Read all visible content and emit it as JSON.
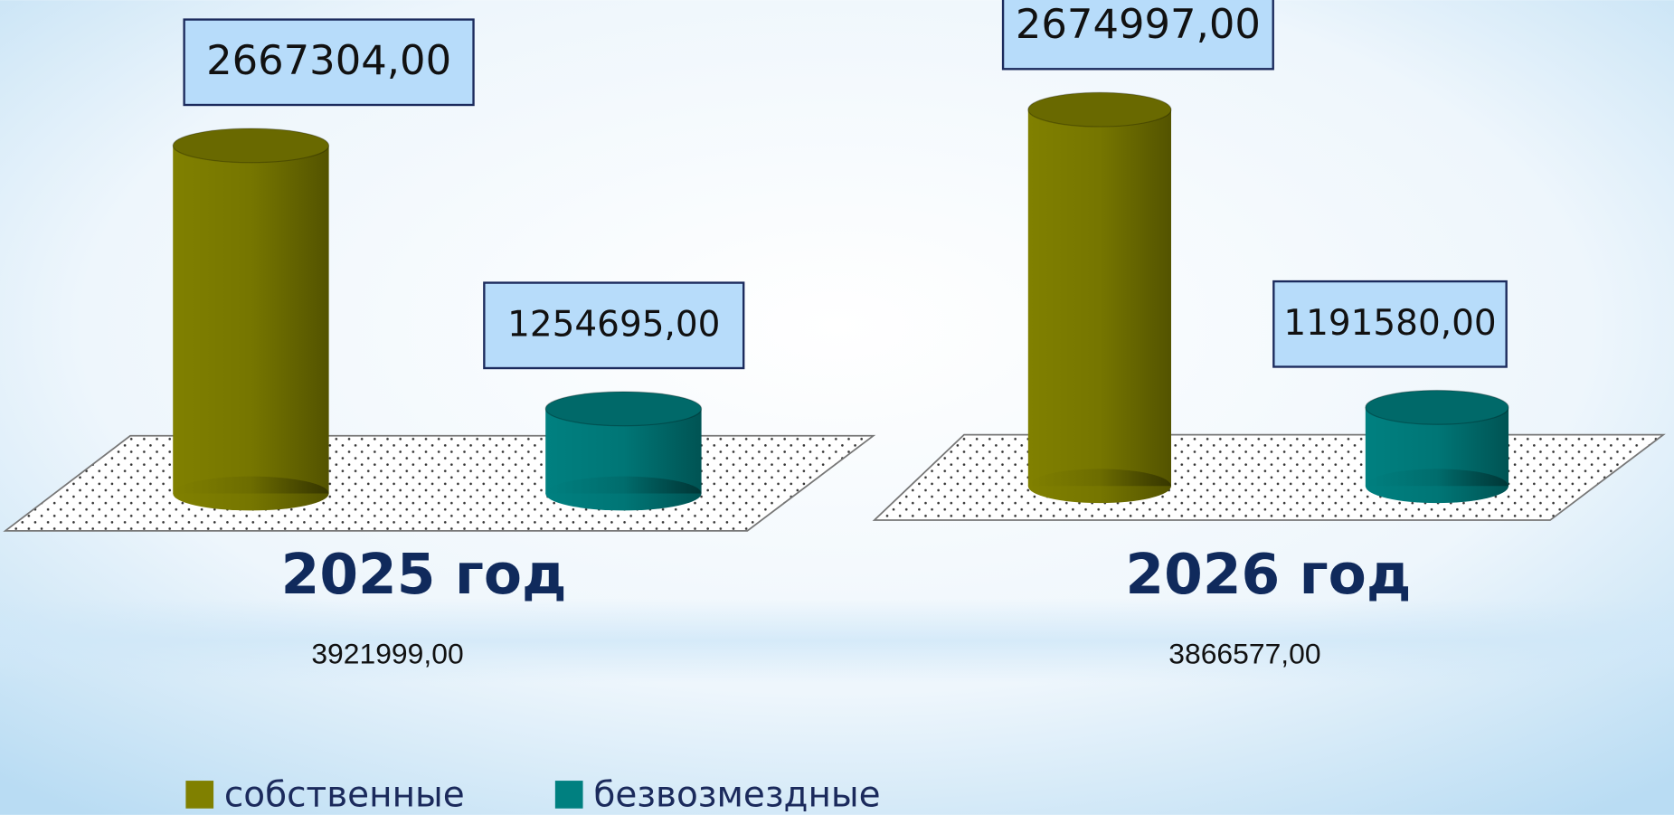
{
  "chart_data": [
    {
      "type": "bar",
      "title": "2025 год",
      "annotation": "3921999,00",
      "series": [
        {
          "name": "собственные",
          "color": "#808000",
          "values": [
            2667304
          ],
          "value_labels": [
            "2667304,00"
          ]
        },
        {
          "name": "безвозмездные",
          "color": "#008080",
          "values": [
            1254695
          ],
          "value_labels": [
            "1254695,00"
          ]
        }
      ],
      "ylim": [
        800000,
        2800000
      ]
    },
    {
      "type": "bar",
      "title": "2026 год",
      "annotation": "3866577,00",
      "series": [
        {
          "name": "собственные",
          "color": "#808000",
          "values": [
            2674997
          ],
          "value_labels": [
            "2674997,00"
          ]
        },
        {
          "name": "безвозмездные",
          "color": "#008080",
          "values": [
            1191580
          ],
          "value_labels": [
            "1191580,00"
          ]
        }
      ],
      "ylim": [
        800000,
        2800000
      ]
    }
  ]
}
